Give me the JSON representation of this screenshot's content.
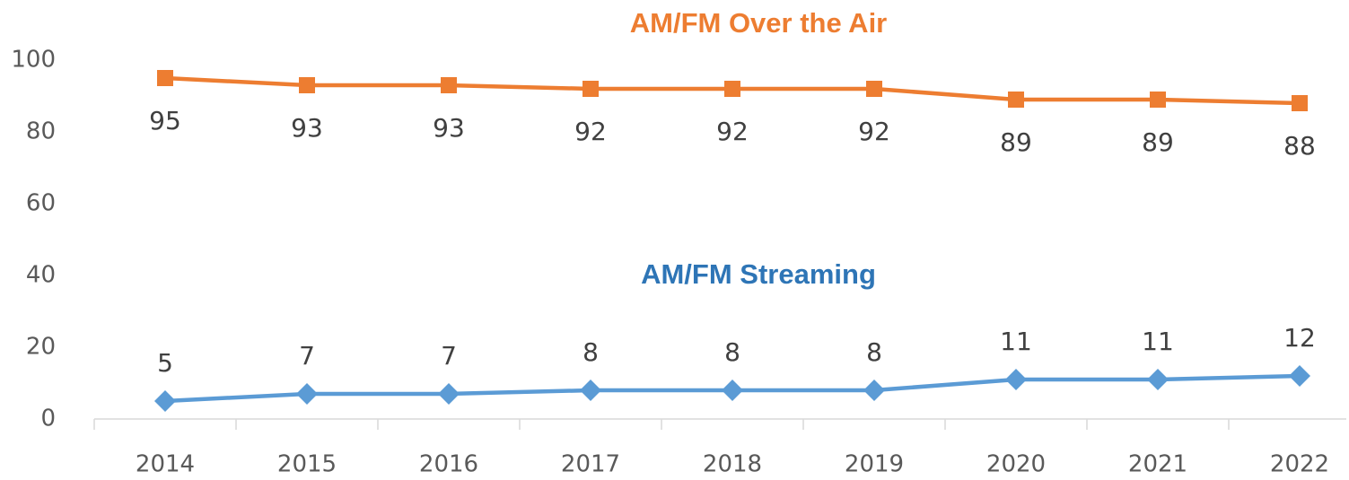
{
  "chart_data": {
    "type": "line",
    "categories": [
      "2014",
      "2015",
      "2016",
      "2017",
      "2018",
      "2019",
      "2020",
      "2021",
      "2022"
    ],
    "series": [
      {
        "name": "AM/FM Over the Air",
        "color": "#ED7D31",
        "marker": "square",
        "values": [
          95,
          93,
          93,
          92,
          92,
          92,
          89,
          89,
          88
        ]
      },
      {
        "name": "AM/FM Streaming",
        "color": "#5B9BD5",
        "label_color": "#2E75B6",
        "marker": "diamond",
        "values": [
          5,
          7,
          7,
          8,
          8,
          8,
          11,
          11,
          12
        ]
      }
    ],
    "ylim": [
      0,
      100
    ],
    "yticks": [
      0,
      20,
      40,
      60,
      80,
      100
    ],
    "grid": false
  }
}
